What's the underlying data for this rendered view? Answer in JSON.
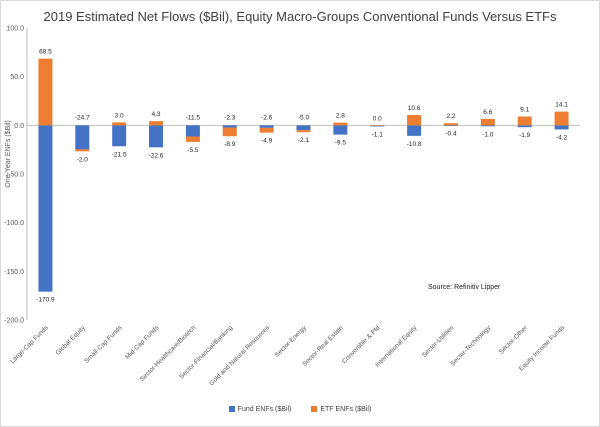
{
  "chart_data": {
    "type": "bar",
    "stacked": true,
    "title": "2019 Estimated Net Flows ($Bil), Equity Macro-Groups Conventional Funds Versus ETFs",
    "ylabel": "One-Year ENFs ($Bil)",
    "xlabel": "",
    "ylim": [
      -200,
      100
    ],
    "yticks": [
      "100.0",
      "50.0",
      "0.0",
      "-50.0",
      "-100.0",
      "-150.0",
      "-200.0"
    ],
    "grid": false,
    "legend_position": "bottom",
    "categories": [
      "Large-Cap Funds",
      "Global Equity",
      "Small-Cap Funds",
      "Mid-Cap Funds",
      "Sector-Healthcare/Biotech",
      "Sector-Financial/Banking",
      "Gold and Natural Resources",
      "Sector-Energy",
      "Sector-Real Estate",
      "Convertible & Pfd",
      "International Equity",
      "Sector-Utilities",
      "Sector-Technology",
      "Sector-Other",
      "Equity Income Funds"
    ],
    "series": [
      {
        "name": "Fund ENFs ($Bil)",
        "color": "#4472c4",
        "values": [
          -170.9,
          -24.7,
          -21.5,
          -22.6,
          -11.5,
          -2.3,
          -2.6,
          -5.0,
          -9.5,
          -1.1,
          -10.8,
          -0.4,
          -1.0,
          -1.9,
          -4.2
        ],
        "labels": [
          "-170.9",
          "-24.7",
          "-21.5",
          "-22.6",
          "-11.5",
          "-2.3",
          "-2.6",
          "-5.0",
          "-9.5",
          "-1.1",
          "-10.8",
          "-0.4",
          "-1.0",
          "-1.9",
          "-4.2"
        ]
      },
      {
        "name": "ETF ENFs ($Bil)",
        "color": "#ed7d31",
        "values": [
          68.5,
          -2.0,
          3.0,
          4.3,
          -5.5,
          -8.9,
          -4.9,
          -2.1,
          2.8,
          0.0,
          10.6,
          2.2,
          6.6,
          9.1,
          14.1
        ],
        "labels": [
          "68.5",
          "-2.0",
          "3.0",
          "4.3",
          "-5.5",
          "-8.9",
          "-4.9",
          "-2.1",
          "2.8",
          "0.0",
          "10.6",
          "2.2",
          "6.6",
          "9.1",
          "14.1"
        ]
      }
    ],
    "annotation": "Source: Refinitiv Lipper"
  }
}
